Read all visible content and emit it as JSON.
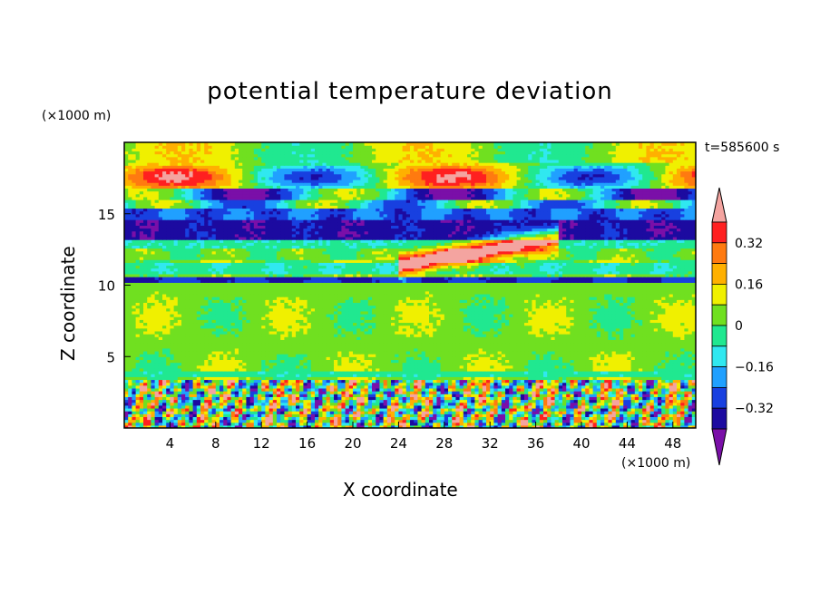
{
  "chart_data": {
    "type": "heatmap",
    "title": "potential temperature deviation",
    "xlabel": "X coordinate",
    "ylabel": "Z coordinate",
    "x_unit": "(×1000 m)",
    "y_unit": "(×1000 m)",
    "time_label": "t=585600 s",
    "xlim": [
      0,
      50
    ],
    "ylim": [
      0,
      20
    ],
    "x_ticks": [
      4,
      8,
      12,
      16,
      20,
      24,
      28,
      32,
      36,
      40,
      44,
      48
    ],
    "y_ticks": [
      5,
      10,
      15
    ],
    "colorbar": {
      "levels": [
        -0.4,
        -0.32,
        -0.24,
        -0.16,
        -0.08,
        0,
        0.08,
        0.16,
        0.24,
        0.32,
        0.4
      ],
      "colors": [
        "#7a0fa8",
        "#1c0aa0",
        "#1840e0",
        "#20a0ff",
        "#30e8f0",
        "#20e890",
        "#70e020",
        "#f0f000",
        "#ffb000",
        "#ff7a10",
        "#ff2020",
        "#f4a4a0"
      ],
      "tick_labels": [
        "0.32",
        "0.16",
        "0",
        "-0.16",
        "-0.32"
      ],
      "tick_values": [
        0.32,
        0.16,
        0,
        -0.16,
        -0.32
      ]
    },
    "fields": {
      "background_value": 0.04,
      "bands": [
        {
          "z": [
            0,
            3.5
          ],
          "description": "turbulent boundary layer",
          "values": [
            -0.4,
            0.4
          ]
        },
        {
          "z": [
            10.2,
            10.6
          ],
          "value": -0.32
        },
        {
          "z": [
            12.6,
            13.2
          ],
          "value": -0.06
        },
        {
          "z": [
            13.2,
            14.6
          ],
          "value": -0.4
        },
        {
          "z": [
            14.6,
            15.5
          ],
          "value": -0.32
        },
        {
          "z": [
            16.0,
            16.6
          ],
          "value": -0.18
        }
      ]
    }
  }
}
